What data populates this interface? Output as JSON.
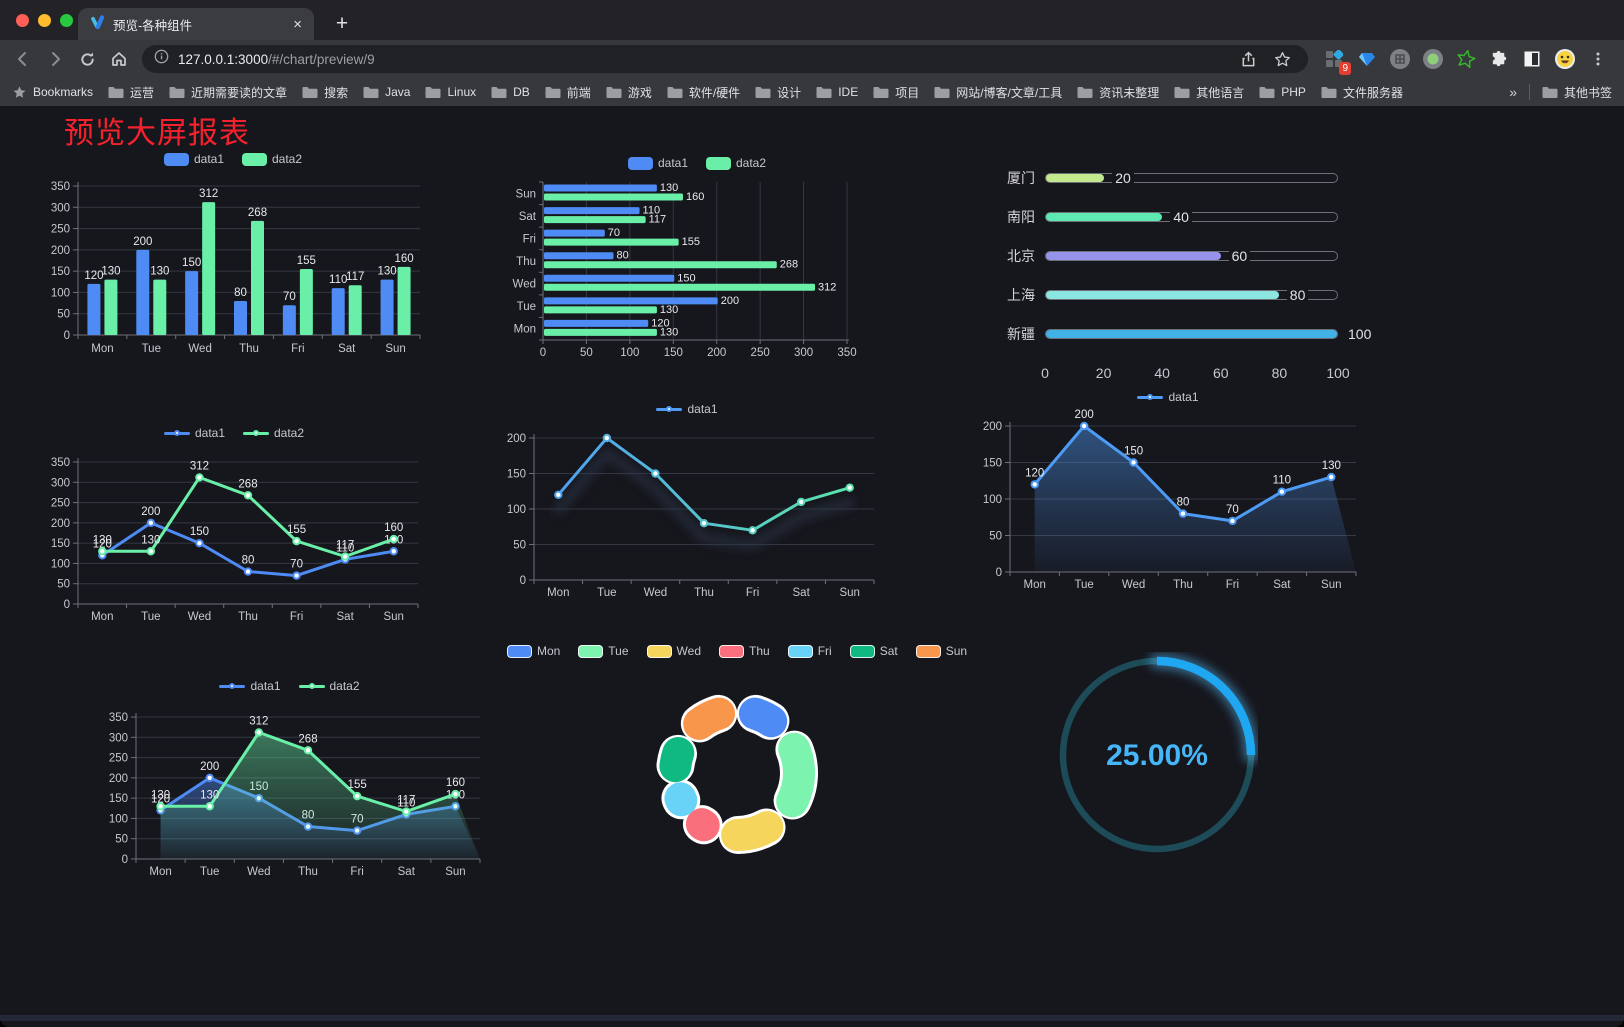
{
  "browser": {
    "tab": {
      "title": "预览-各种组件",
      "close_label": "×"
    },
    "new_tab_label": "+",
    "url": {
      "host": "127.0.0.1:3000",
      "path": "/#/chart/preview/9"
    },
    "extension_badge": "9",
    "bookmarks_label": "Bookmarks",
    "bookmarks": [
      "运营",
      "近期需要读的文章",
      "搜索",
      "Java",
      "Linux",
      "DB",
      "前端",
      "游戏",
      "软件/硬件",
      "设计",
      "IDE",
      "项目",
      "网站/博客/文章/工具",
      "资讯未整理",
      "其他语言",
      "PHP",
      "文件服务器"
    ],
    "bookmarks_overflow": "»",
    "other_bookmarks": "其他书签"
  },
  "page": {
    "title": "预览大屏报表",
    "title_color": "#F5222D"
  },
  "chart_data": [
    {
      "type": "bar",
      "legend": [
        "data1",
        "data2"
      ],
      "legend_position": "top",
      "categories": [
        "Mon",
        "Tue",
        "Wed",
        "Thu",
        "Fri",
        "Sat",
        "Sun"
      ],
      "series": [
        {
          "name": "data1",
          "color": "#4E8BF4",
          "values": [
            120,
            200,
            150,
            80,
            70,
            110,
            130
          ]
        },
        {
          "name": "data2",
          "color": "#69EFA7",
          "values": [
            130,
            130,
            312,
            268,
            155,
            117,
            160
          ]
        }
      ],
      "ylim": [
        0,
        350
      ],
      "ytick": 50,
      "grid": true,
      "value_labels": true
    },
    {
      "type": "bar-horizontal",
      "legend": [
        "data1",
        "data2"
      ],
      "legend_position": "top",
      "categories": [
        "Mon",
        "Tue",
        "Wed",
        "Thu",
        "Fri",
        "Sat",
        "Sun"
      ],
      "category_display_order": "bottom-to-top",
      "series": [
        {
          "name": "data1",
          "color": "#4E8BF4",
          "values": [
            120,
            200,
            150,
            80,
            70,
            110,
            130
          ]
        },
        {
          "name": "data2",
          "color": "#69EFA7",
          "values": [
            130,
            130,
            312,
            268,
            155,
            117,
            160
          ]
        }
      ],
      "xlim": [
        0,
        350
      ],
      "xtick": 50,
      "grid": true,
      "value_labels": true
    },
    {
      "type": "progress-bars",
      "items": [
        {
          "label": "厦门",
          "value": 20,
          "color": "#C3E88D"
        },
        {
          "label": "南阳",
          "value": 40,
          "color": "#5FE9B2"
        },
        {
          "label": "北京",
          "value": 60,
          "color": "#9793EA"
        },
        {
          "label": "上海",
          "value": 80,
          "color": "#8BE6E2"
        },
        {
          "label": "新疆",
          "value": 100,
          "color": "#41B2E8"
        }
      ],
      "xlim": [
        0,
        100
      ],
      "xticks": [
        0,
        20,
        40,
        60,
        80,
        100
      ]
    },
    {
      "type": "line",
      "legend": [
        "data1",
        "data2"
      ],
      "legend_position": "top",
      "categories": [
        "Mon",
        "Tue",
        "Wed",
        "Thu",
        "Fri",
        "Sat",
        "Sun"
      ],
      "series": [
        {
          "name": "data1",
          "color": "#4E8BF4",
          "values": [
            120,
            200,
            150,
            80,
            70,
            110,
            130
          ]
        },
        {
          "name": "data2",
          "color": "#69EFA7",
          "values": [
            130,
            130,
            312,
            268,
            155,
            117,
            160
          ]
        }
      ],
      "ylim": [
        0,
        350
      ],
      "ytick": 50,
      "markers": true,
      "value_labels": true
    },
    {
      "type": "line",
      "legend": [
        "data1"
      ],
      "legend_position": "top",
      "categories": [
        "Mon",
        "Tue",
        "Wed",
        "Thu",
        "Fri",
        "Sat",
        "Sun"
      ],
      "series": [
        {
          "name": "data1",
          "color_gradient": [
            "#4F9BF6",
            "#5BE9A4"
          ],
          "values": [
            120,
            200,
            150,
            80,
            70,
            110,
            130
          ]
        }
      ],
      "ylim": [
        0,
        200
      ],
      "ytick": 50,
      "markers": true,
      "value_labels": false,
      "shadow": true
    },
    {
      "type": "area",
      "legend": [
        "data1"
      ],
      "legend_position": "top",
      "categories": [
        "Mon",
        "Tue",
        "Wed",
        "Thu",
        "Fri",
        "Sat",
        "Sun"
      ],
      "series": [
        {
          "name": "data1",
          "color": "#4E9BF5",
          "area": true,
          "values": [
            120,
            200,
            150,
            80,
            70,
            110,
            130
          ]
        }
      ],
      "ylim": [
        0,
        200
      ],
      "ytick": 50,
      "markers": true,
      "value_labels": true
    },
    {
      "type": "area",
      "legend": [
        "data1",
        "data2"
      ],
      "legend_position": "top",
      "categories": [
        "Mon",
        "Tue",
        "Wed",
        "Thu",
        "Fri",
        "Sat",
        "Sun"
      ],
      "series": [
        {
          "name": "data1",
          "color": "#4E8BF4",
          "area": true,
          "values": [
            120,
            200,
            150,
            80,
            70,
            110,
            130
          ]
        },
        {
          "name": "data2",
          "color": "#69EFA7",
          "area": true,
          "values": [
            130,
            130,
            312,
            268,
            155,
            117,
            160
          ]
        }
      ],
      "ylim": [
        0,
        350
      ],
      "ytick": 50,
      "markers": true,
      "value_labels": true
    },
    {
      "type": "donut",
      "legend": [
        "Mon",
        "Tue",
        "Wed",
        "Thu",
        "Fri",
        "Sat",
        "Sun"
      ],
      "legend_position": "top",
      "categories": [
        "Mon",
        "Tue",
        "Wed",
        "Thu",
        "Fri",
        "Sat",
        "Sun"
      ],
      "values": [
        120,
        200,
        150,
        80,
        70,
        110,
        130
      ],
      "colors": [
        "#4E8BF4",
        "#7DF3B0",
        "#F6D55C",
        "#F9707C",
        "#69D2F7",
        "#10B981",
        "#F8964B"
      ]
    },
    {
      "type": "gauge",
      "value": 25,
      "display": "25.00%",
      "color": "#1FA7F2",
      "track_color": "#1D4B57",
      "text_color": "#45B6F7"
    }
  ]
}
